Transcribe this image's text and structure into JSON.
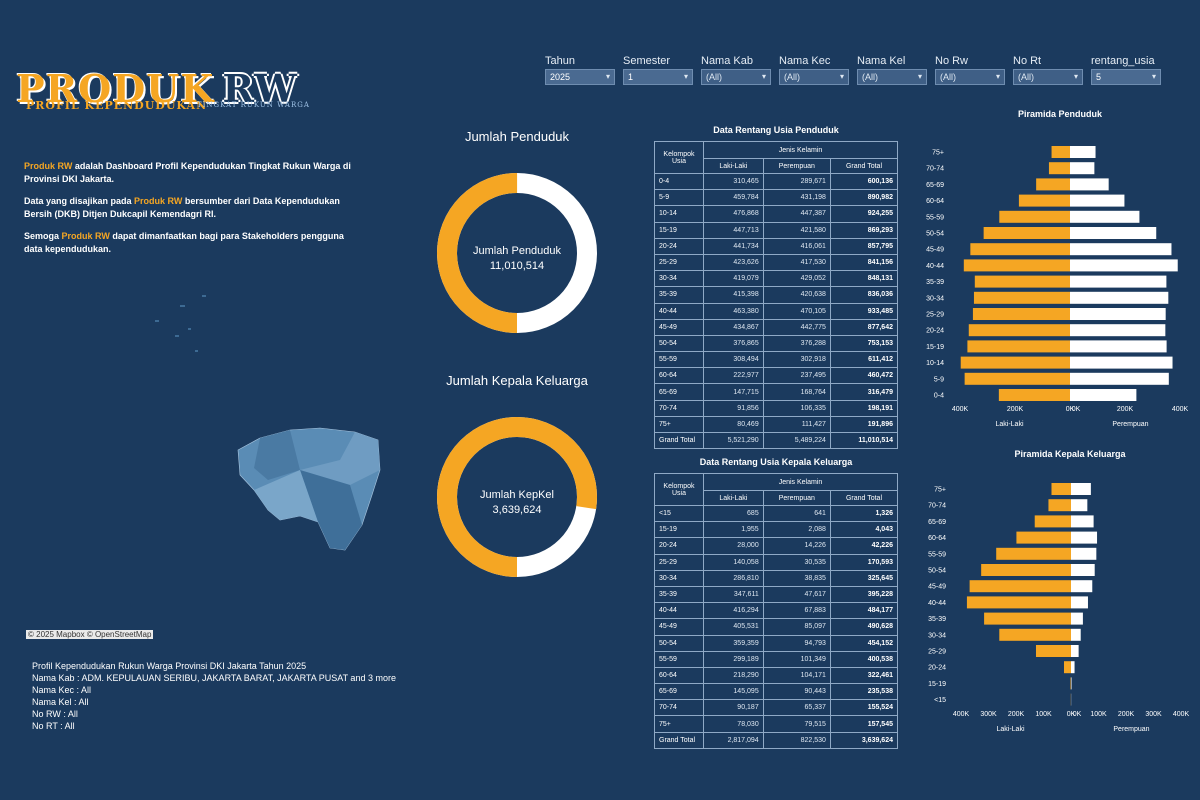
{
  "filters": [
    {
      "label": "Tahun",
      "value": "2025",
      "x": 545
    },
    {
      "label": "Semester",
      "value": "1",
      "x": 623
    },
    {
      "label": "Nama Kab",
      "value": "(All)",
      "x": 701
    },
    {
      "label": "Nama Kec",
      "value": "(All)",
      "x": 779
    },
    {
      "label": "Nama Kel",
      "value": "(All)",
      "x": 857
    },
    {
      "label": "No Rw",
      "value": "(All)",
      "x": 935
    },
    {
      "label": "No Rt",
      "value": "(All)",
      "x": 1013
    },
    {
      "label": "rentang_usia",
      "value": "5",
      "x": 1091
    }
  ],
  "logo": {
    "main1": "PRODUK",
    "main2": "RW",
    "sub1": "PROFIL KEPENDUDUKAN",
    "sub2": "TINGKAT RUKUN WARGA"
  },
  "intro": {
    "p1_hl": "Produk RW",
    "p1_text": " adalah Dashboard Profil Kependudukan Tingkat Rukun Warga di Provinsi DKI Jakarta.",
    "p2_a": "Data yang disajikan pada ",
    "p2_hl": "Produk RW",
    "p2_b": " bersumber dari Data Kependudukan Bersih (DKB) Ditjen Dukcapil Kemendagri RI.",
    "p3_a": "Semoga ",
    "p3_hl": "Produk RW",
    "p3_b": " dapat dimanfaatkan bagi para  Stakeholders pengguna data kependudukan."
  },
  "map": {
    "credit": "© 2025 Mapbox  © OpenStreetMap"
  },
  "footer": {
    "line1": "Profil Kependudukan Rukun Warga Provinsi DKI Jakarta Tahun 2025",
    "line2": "Nama Kab : ADM. KEPULAUAN SERIBU, JAKARTA BARAT, JAKARTA PUSAT and 3 more",
    "line3": "Nama Kec : All",
    "line4": "Nama Kel : All",
    "line5": "No RW : All",
    "line6": "No RT : All"
  },
  "donut1": {
    "title": "Jumlah Penduduk",
    "label": "Jumlah Penduduk",
    "value": "11,010,514",
    "fraction": 0.5,
    "color": "#f5a623"
  },
  "donut2": {
    "title": "Jumlah Kepala Keluarga",
    "label": "Jumlah KepKel",
    "value": "3,639,624",
    "fraction": 0.774,
    "color": "#f5a623"
  },
  "table1": {
    "title": "Data Rentang Usia Penduduk",
    "group_header": "Kelompok Usia",
    "jenis_header": "Jenis Kelamin",
    "cols": [
      "Laki-Laki",
      "Perempuan",
      "Grand Total"
    ],
    "rows": [
      [
        "0-4",
        "310,465",
        "289,671",
        "600,136"
      ],
      [
        "5-9",
        "459,784",
        "431,198",
        "890,982"
      ],
      [
        "10-14",
        "476,868",
        "447,387",
        "924,255"
      ],
      [
        "15-19",
        "447,713",
        "421,580",
        "869,293"
      ],
      [
        "20-24",
        "441,734",
        "416,061",
        "857,795"
      ],
      [
        "25-29",
        "423,626",
        "417,530",
        "841,156"
      ],
      [
        "30-34",
        "419,079",
        "429,052",
        "848,131"
      ],
      [
        "35-39",
        "415,398",
        "420,638",
        "836,036"
      ],
      [
        "40-44",
        "463,380",
        "470,105",
        "933,485"
      ],
      [
        "45-49",
        "434,867",
        "442,775",
        "877,642"
      ],
      [
        "50-54",
        "376,865",
        "376,288",
        "753,153"
      ],
      [
        "55-59",
        "308,494",
        "302,918",
        "611,412"
      ],
      [
        "60-64",
        "222,977",
        "237,495",
        "460,472"
      ],
      [
        "65-69",
        "147,715",
        "168,764",
        "316,479"
      ],
      [
        "70-74",
        "91,856",
        "106,335",
        "198,191"
      ],
      [
        "75+",
        "80,469",
        "111,427",
        "191,896"
      ],
      [
        "Grand Total",
        "5,521,290",
        "5,489,224",
        "11,010,514"
      ]
    ]
  },
  "table2": {
    "title": "Data Rentang Usia Kepala Keluarga",
    "group_header": "Kelompok Usia",
    "jenis_header": "Jenis Kelamin",
    "cols": [
      "Laki-Laki",
      "Perempuan",
      "Grand Total"
    ],
    "rows": [
      [
        "<15",
        "685",
        "641",
        "1,326"
      ],
      [
        "15-19",
        "1,955",
        "2,088",
        "4,043"
      ],
      [
        "20-24",
        "28,000",
        "14,226",
        "42,226"
      ],
      [
        "25-29",
        "140,058",
        "30,535",
        "170,593"
      ],
      [
        "30-34",
        "286,810",
        "38,835",
        "325,645"
      ],
      [
        "35-39",
        "347,611",
        "47,617",
        "395,228"
      ],
      [
        "40-44",
        "416,294",
        "67,883",
        "484,177"
      ],
      [
        "45-49",
        "405,531",
        "85,097",
        "490,628"
      ],
      [
        "50-54",
        "359,359",
        "94,793",
        "454,152"
      ],
      [
        "55-59",
        "299,189",
        "101,349",
        "400,538"
      ],
      [
        "60-64",
        "218,290",
        "104,171",
        "322,461"
      ],
      [
        "65-69",
        "145,095",
        "90,443",
        "235,538"
      ],
      [
        "70-74",
        "90,187",
        "65,337",
        "155,524"
      ],
      [
        "75+",
        "78,030",
        "79,515",
        "157,545"
      ],
      [
        "Grand Total",
        "2,817,094",
        "822,530",
        "3,639,624"
      ]
    ]
  },
  "chart_data": [
    {
      "type": "bar",
      "title": "Piramida Penduduk",
      "categories": [
        "75+",
        "70-74",
        "65-69",
        "60-64",
        "55-59",
        "50-54",
        "45-49",
        "40-44",
        "35-39",
        "30-34",
        "25-29",
        "20-24",
        "15-19",
        "10-14",
        "5-9",
        "0-4"
      ],
      "series": [
        {
          "name": "Laki-Laki",
          "color": "#f5a623",
          "values": [
            80469,
            91856,
            147715,
            222977,
            308494,
            376865,
            434867,
            463380,
            415398,
            419079,
            423626,
            441734,
            447713,
            476868,
            459784,
            310465
          ]
        },
        {
          "name": "Perempuan",
          "color": "#ffffff",
          "values": [
            111427,
            106335,
            168764,
            237495,
            302918,
            376288,
            442775,
            470105,
            420638,
            429052,
            417530,
            416061,
            421580,
            447387,
            431198,
            289671
          ]
        }
      ],
      "left_ticks": [
        "400K",
        "200K",
        "0K"
      ],
      "right_ticks": [
        "0K",
        "200K",
        "400K"
      ],
      "xlim": [
        0,
        480000
      ]
    },
    {
      "type": "bar",
      "title": "Piramida Kepala Keluarga",
      "categories": [
        "75+",
        "70-74",
        "65-69",
        "60-64",
        "55-59",
        "50-54",
        "45-49",
        "40-44",
        "35-39",
        "30-34",
        "25-29",
        "20-24",
        "15-19",
        "<15"
      ],
      "series": [
        {
          "name": "Laki-Laki",
          "color": "#f5a623",
          "values": [
            78030,
            90187,
            145095,
            218290,
            299189,
            359359,
            405531,
            416294,
            347611,
            286810,
            140058,
            28000,
            1955,
            685
          ]
        },
        {
          "name": "Perempuan",
          "color": "#ffffff",
          "values": [
            79515,
            65337,
            90443,
            104171,
            101349,
            94793,
            85097,
            67883,
            47617,
            38835,
            30535,
            14226,
            2088,
            641
          ]
        }
      ],
      "left_ticks": [
        "400K",
        "300K",
        "200K",
        "100K",
        "0K"
      ],
      "right_ticks": [
        "0K",
        "100K",
        "200K",
        "300K",
        "400K"
      ],
      "xlim": [
        0,
        440000
      ]
    }
  ]
}
